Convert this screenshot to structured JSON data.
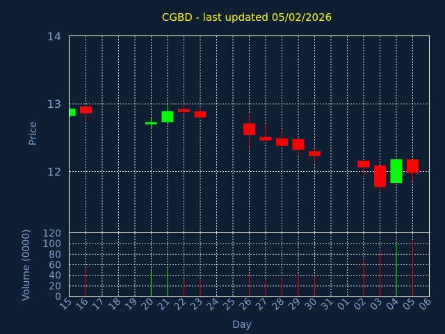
{
  "chart_data": {
    "type": "candlestick",
    "title": "CGBD - last updated 05/02/2026",
    "xlabel": "Day",
    "price_panel": {
      "ylabel": "Price",
      "ylim": [
        11.1,
        14.0
      ],
      "yticks": [
        "12",
        "13",
        "14"
      ],
      "grid": true
    },
    "volume_panel": {
      "ylabel": "Volume (0000)",
      "ylim": [
        0,
        120
      ],
      "yticks": [
        "0",
        "20",
        "40",
        "60",
        "80",
        "100",
        "120"
      ],
      "grid": true
    },
    "x_tick_labels": [
      "15",
      "16",
      "17",
      "18",
      "19",
      "20",
      "21",
      "22",
      "23",
      "24",
      "25",
      "26",
      "27",
      "28",
      "29",
      "30",
      "31",
      "01",
      "02",
      "03",
      "04",
      "05",
      "06"
    ],
    "up_color": "#00ff00",
    "down_color": "#ff0000",
    "candles": [
      {
        "day": "15",
        "open": 12.82,
        "high": 12.94,
        "low": 12.8,
        "close": 12.93,
        "volume": 0
      },
      {
        "day": "16",
        "open": 12.96,
        "high": 12.96,
        "low": 12.75,
        "close": 12.86,
        "volume": 53
      },
      {
        "day": "20",
        "open": 12.7,
        "high": 12.79,
        "low": 12.63,
        "close": 12.73,
        "volume": 49
      },
      {
        "day": "21",
        "open": 12.73,
        "high": 13.0,
        "low": 12.73,
        "close": 12.89,
        "volume": 53
      },
      {
        "day": "22",
        "open": 12.92,
        "high": 12.98,
        "low": 12.87,
        "close": 12.88,
        "volume": 32
      },
      {
        "day": "23",
        "open": 12.89,
        "high": 12.94,
        "low": 12.79,
        "close": 12.8,
        "volume": 30
      },
      {
        "day": "26",
        "open": 12.71,
        "high": 12.85,
        "low": 12.34,
        "close": 12.54,
        "volume": 42
      },
      {
        "day": "27",
        "open": 12.51,
        "high": 12.7,
        "low": 12.45,
        "close": 12.46,
        "volume": 32
      },
      {
        "day": "28",
        "open": 12.49,
        "high": 12.61,
        "low": 12.37,
        "close": 12.38,
        "volume": 35
      },
      {
        "day": "29",
        "open": 12.48,
        "high": 12.49,
        "low": 12.23,
        "close": 12.32,
        "volume": 43
      },
      {
        "day": "30",
        "open": 12.3,
        "high": 12.34,
        "low": 12.12,
        "close": 12.23,
        "volume": 38
      },
      {
        "day": "02",
        "open": 12.16,
        "high": 12.16,
        "low": 11.93,
        "close": 12.06,
        "volume": 72
      },
      {
        "day": "03",
        "open": 12.09,
        "high": 12.09,
        "low": 11.7,
        "close": 11.77,
        "volume": 84
      },
      {
        "day": "04",
        "open": 11.83,
        "high": 12.18,
        "low": 11.83,
        "close": 12.18,
        "volume": 100
      },
      {
        "day": "05",
        "open": 12.18,
        "high": 12.18,
        "low": 11.86,
        "close": 11.98,
        "volume": 105
      }
    ]
  }
}
